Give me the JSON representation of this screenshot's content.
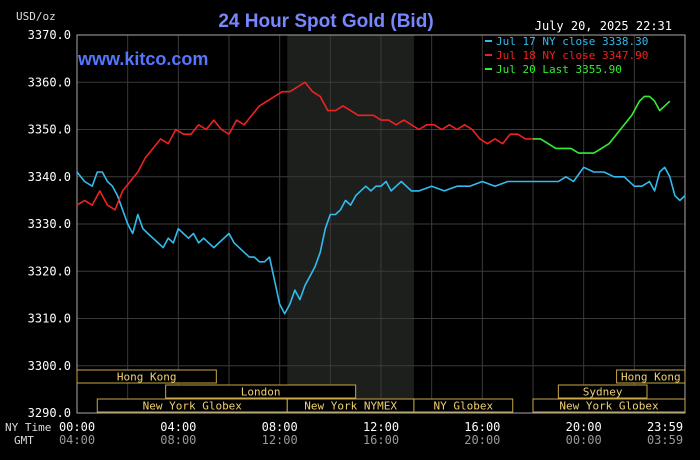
{
  "chart_data": {
    "type": "line",
    "title": "24 Hour Spot Gold (Bid)",
    "watermark": "www.kitco.com",
    "datetime": "July 20, 2025 22:31",
    "y_unit_label": "USD/oz",
    "ylim": [
      3290,
      3370
    ],
    "y_ticks": [
      "3370.0",
      "3360.0",
      "3350.0",
      "3340.0",
      "3330.0",
      "3320.0",
      "3310.0",
      "3300.0",
      "3290.0"
    ],
    "x_range_hours": [
      0,
      24
    ],
    "x_ticks_ny": [
      "00:00",
      "04:00",
      "08:00",
      "12:00",
      "16:00",
      "20:00",
      "23:59"
    ],
    "x_ticks_gmt": [
      "04:00",
      "08:00",
      "12:00",
      "16:00",
      "20:00",
      "00:00",
      "03:59"
    ],
    "row_label_ny": "NY Time",
    "row_label_gmt": "GMT",
    "shaded_hours": [
      8.3,
      13.3
    ],
    "grid": true,
    "legend_position": "top-right",
    "series": [
      {
        "name": "Jul 17 NY close 3338.30",
        "color": "#33bbee",
        "x": [
          0,
          0.3,
          0.6,
          0.8,
          1.0,
          1.2,
          1.4,
          1.6,
          1.8,
          2.0,
          2.2,
          2.4,
          2.6,
          2.8,
          3.0,
          3.2,
          3.4,
          3.6,
          3.8,
          4.0,
          4.2,
          4.4,
          4.6,
          4.8,
          5.0,
          5.2,
          5.4,
          5.6,
          5.8,
          6.0,
          6.2,
          6.4,
          6.6,
          6.8,
          7.0,
          7.2,
          7.4,
          7.6,
          7.8,
          8.0,
          8.2,
          8.4,
          8.6,
          8.8,
          9.0,
          9.2,
          9.4,
          9.6,
          9.8,
          10.0,
          10.2,
          10.4,
          10.6,
          10.8,
          11.0,
          11.2,
          11.4,
          11.6,
          11.8,
          12.0,
          12.2,
          12.4,
          12.6,
          12.8,
          13.0,
          13.2,
          13.5,
          14.0,
          14.5,
          15.0,
          15.5,
          16.0,
          16.5,
          17.0,
          17.5,
          18.0,
          18.5,
          19.0,
          19.3,
          19.6,
          20.0,
          20.4,
          20.8,
          21.2,
          21.6,
          22.0,
          22.3,
          22.6,
          22.8,
          23.0,
          23.2,
          23.4,
          23.6,
          23.8,
          24.0
        ],
        "values": [
          3341,
          3339,
          3338,
          3341,
          3341,
          3339,
          3338,
          3336,
          3333,
          3330,
          3328,
          3332,
          3329,
          3328,
          3327,
          3326,
          3325,
          3327,
          3326,
          3329,
          3328,
          3327,
          3328,
          3326,
          3327,
          3326,
          3325,
          3326,
          3327,
          3328,
          3326,
          3325,
          3324,
          3323,
          3323,
          3322,
          3322,
          3323,
          3318,
          3313,
          3311,
          3313,
          3316,
          3314,
          3317,
          3319,
          3321,
          3324,
          3329,
          3332,
          3332,
          3333,
          3335,
          3334,
          3336,
          3337,
          3338,
          3337,
          3338,
          3338,
          3339,
          3337,
          3338,
          3339,
          3338,
          3337,
          3337,
          3338,
          3337,
          3338,
          3338,
          3339,
          3338,
          3339,
          3339,
          3339,
          3339,
          3339,
          3340,
          3339,
          3342,
          3341,
          3341,
          3340,
          3340,
          3338,
          3338,
          3339,
          3337,
          3341,
          3342,
          3340,
          3336,
          3335,
          3336
        ]
      },
      {
        "name": "Jul 18 NY close 3347.90",
        "color": "#ee2222",
        "x": [
          0,
          0.3,
          0.6,
          0.9,
          1.2,
          1.5,
          1.8,
          2.1,
          2.4,
          2.7,
          3.0,
          3.3,
          3.6,
          3.9,
          4.2,
          4.5,
          4.8,
          5.1,
          5.4,
          5.7,
          6.0,
          6.3,
          6.6,
          6.9,
          7.2,
          7.5,
          7.8,
          8.1,
          8.4,
          8.7,
          9.0,
          9.3,
          9.6,
          9.9,
          10.2,
          10.5,
          10.8,
          11.1,
          11.4,
          11.7,
          12.0,
          12.3,
          12.6,
          12.9,
          13.2,
          13.5,
          13.8,
          14.1,
          14.4,
          14.7,
          15.0,
          15.3,
          15.6,
          15.9,
          16.2,
          16.5,
          16.8,
          17.1,
          17.4,
          17.7,
          18.0
        ],
        "values": [
          3334,
          3335,
          3334,
          3337,
          3334,
          3333,
          3337,
          3339,
          3341,
          3344,
          3346,
          3348,
          3347,
          3350,
          3349,
          3349,
          3351,
          3350,
          3352,
          3350,
          3349,
          3352,
          3351,
          3353,
          3355,
          3356,
          3357,
          3358,
          3358,
          3359,
          3360,
          3358,
          3357,
          3354,
          3354,
          3355,
          3354,
          3353,
          3353,
          3353,
          3352,
          3352,
          3351,
          3352,
          3351,
          3350,
          3351,
          3351,
          3350,
          3351,
          3350,
          3351,
          3350,
          3348,
          3347,
          3348,
          3347,
          3349,
          3349,
          3348,
          3348
        ]
      },
      {
        "name": "Jul 20 Last 3355.90",
        "color": "#33ee33",
        "x": [
          18.0,
          18.3,
          18.6,
          18.9,
          19.2,
          19.5,
          19.8,
          20.1,
          20.4,
          20.7,
          21.0,
          21.3,
          21.6,
          21.9,
          22.2,
          22.4,
          22.6,
          22.8,
          23.0,
          23.2,
          23.4
        ],
        "values": [
          3348,
          3348,
          3347,
          3346,
          3346,
          3346,
          3345,
          3345,
          3345,
          3346,
          3347,
          3349,
          3351,
          3353,
          3356,
          3357,
          3357,
          3356,
          3354,
          3355,
          3356
        ]
      }
    ],
    "sessions": [
      {
        "label": "Hong Kong",
        "row": 0,
        "start": 0.0,
        "end": 5.5
      },
      {
        "label": "Hong Kong",
        "row": 0,
        "start": 21.3,
        "end": 24.0
      },
      {
        "label": "London",
        "row": 1,
        "start": 3.5,
        "end": 11.0
      },
      {
        "label": "Sydney",
        "row": 1,
        "start": 19.0,
        "end": 22.5
      },
      {
        "label": "New York Globex",
        "row": 2,
        "start": 0.8,
        "end": 8.3
      },
      {
        "label": "New York NYMEX",
        "row": 2,
        "start": 8.3,
        "end": 13.3
      },
      {
        "label": "NY Globex",
        "row": 2,
        "start": 13.3,
        "end": 17.2
      },
      {
        "label": "New York Globex",
        "row": 2,
        "start": 18.0,
        "end": 24.0
      }
    ]
  }
}
